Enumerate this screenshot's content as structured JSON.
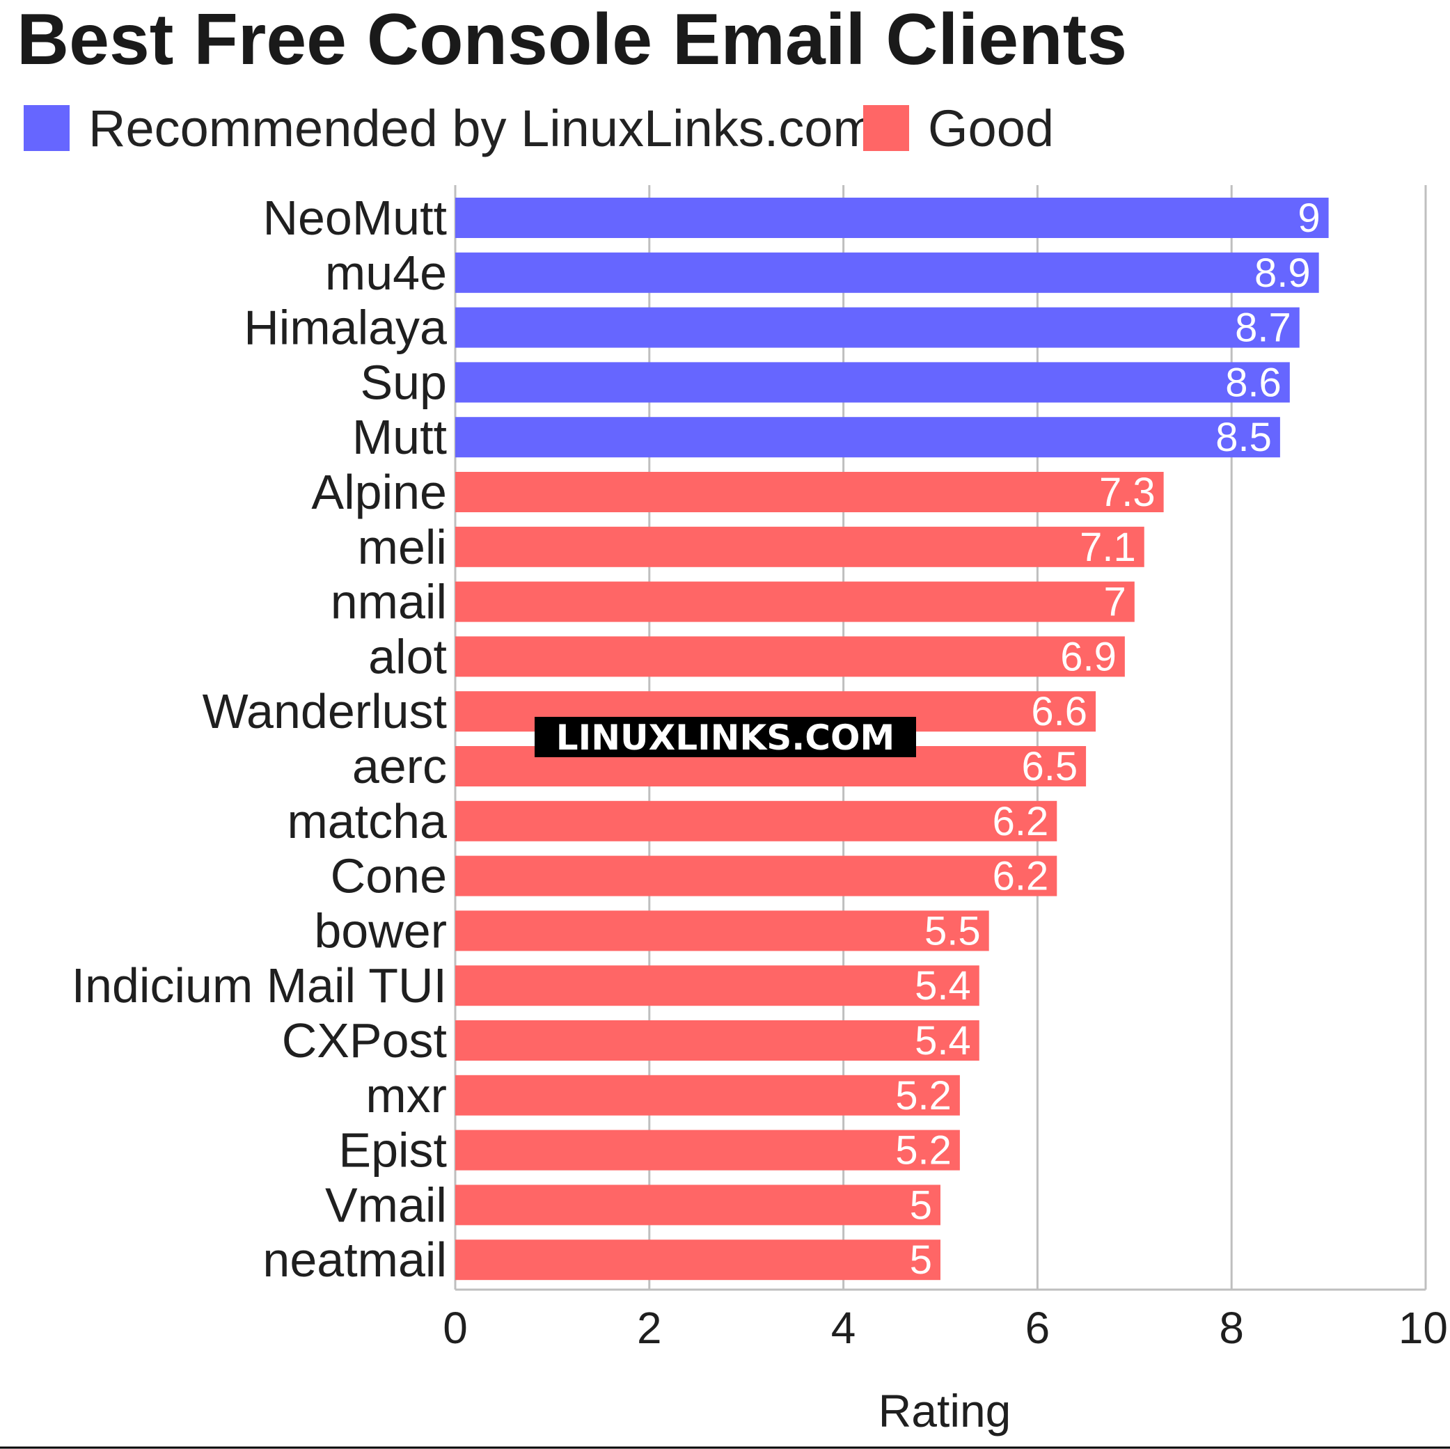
{
  "colors": {
    "recommended": "#6666ff",
    "good": "#ff6666",
    "grid": "#bfbfbf",
    "text": "#1f1f1f"
  },
  "watermark": "LINUXLINKS.COM",
  "chart_data": {
    "type": "bar",
    "orientation": "horizontal",
    "title": "Best Free Console Email Clients",
    "xlabel": "Rating",
    "ylabel": "",
    "xlim": [
      0,
      10
    ],
    "xticks": [
      0,
      2,
      4,
      6,
      8,
      10
    ],
    "grid": true,
    "legend_placement": "top-left",
    "legend": [
      {
        "name": "Recommended by LinuxLinks.com",
        "group": "recommended"
      },
      {
        "name": "Good",
        "group": "good"
      }
    ],
    "categories": [
      "NeoMutt",
      "mu4e",
      "Himalaya",
      "Sup",
      "Mutt",
      "Alpine",
      "meli",
      "nmail",
      "alot",
      "Wanderlust",
      "aerc",
      "matcha",
      "Cone",
      "bower",
      "Indicium Mail TUI",
      "CXPost",
      "mxr",
      "Epist",
      "Vmail",
      "neatmail"
    ],
    "values": [
      9,
      8.9,
      8.7,
      8.6,
      8.5,
      7.3,
      7.1,
      7,
      6.9,
      6.6,
      6.5,
      6.2,
      6.2,
      5.5,
      5.4,
      5.4,
      5.2,
      5.2,
      5,
      5
    ],
    "value_labels": [
      "9",
      "8.9",
      "8.7",
      "8.6",
      "8.5",
      "7.3",
      "7.1",
      "7",
      "6.9",
      "6.6",
      "6.5",
      "6.2",
      "6.2",
      "5.5",
      "5.4",
      "5.4",
      "5.2",
      "5.2",
      "5",
      "5"
    ],
    "groups": [
      "recommended",
      "recommended",
      "recommended",
      "recommended",
      "recommended",
      "good",
      "good",
      "good",
      "good",
      "good",
      "good",
      "good",
      "good",
      "good",
      "good",
      "good",
      "good",
      "good",
      "good",
      "good"
    ]
  }
}
